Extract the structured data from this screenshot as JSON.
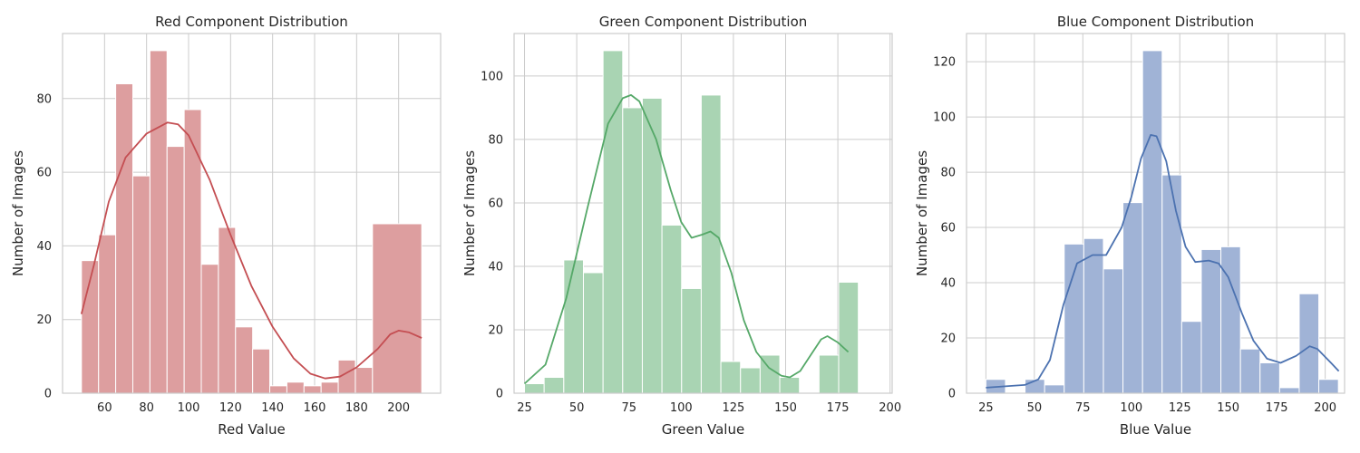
{
  "chart_data": [
    {
      "type": "bar",
      "title": "Red Component Distribution",
      "xlabel": "Red Value",
      "ylabel": "Number of Images",
      "color": "#c44e52",
      "bar_fill": "#dd9e9f",
      "xlim": [
        40,
        220
      ],
      "ylim": [
        0,
        97.65
      ],
      "xticks": [
        60,
        80,
        100,
        120,
        140,
        160,
        180,
        200
      ],
      "yticks": [
        0,
        20,
        40,
        60,
        80
      ],
      "grid": true,
      "bins": [
        {
          "x0": 49.0,
          "x1": 57.15,
          "count": 36
        },
        {
          "x0": 57.15,
          "x1": 65.3,
          "count": 43
        },
        {
          "x0": 65.3,
          "x1": 73.45,
          "count": 84
        },
        {
          "x0": 73.45,
          "x1": 81.6,
          "count": 59
        },
        {
          "x0": 81.6,
          "x1": 89.75,
          "count": 93
        },
        {
          "x0": 89.75,
          "x1": 97.9,
          "count": 67
        },
        {
          "x0": 97.9,
          "x1": 106.05,
          "count": 77
        },
        {
          "x0": 106.05,
          "x1": 114.2,
          "count": 35
        },
        {
          "x0": 114.2,
          "x1": 122.35,
          "count": 45
        },
        {
          "x0": 122.35,
          "x1": 130.5,
          "count": 18
        },
        {
          "x0": 130.5,
          "x1": 138.65,
          "count": 12
        },
        {
          "x0": 138.65,
          "x1": 146.8,
          "count": 2
        },
        {
          "x0": 146.8,
          "x1": 154.95,
          "count": 3
        },
        {
          "x0": 154.95,
          "x1": 163.1,
          "count": 2
        },
        {
          "x0": 163.1,
          "x1": 171.25,
          "count": 3
        },
        {
          "x0": 171.25,
          "x1": 179.4,
          "count": 9
        },
        {
          "x0": 179.4,
          "x1": 187.55,
          "count": 7
        },
        {
          "x0": 187.55,
          "x1": 211.0,
          "count": 46
        }
      ],
      "kde": [
        [
          49,
          21.5
        ],
        [
          55,
          35
        ],
        [
          62,
          52
        ],
        [
          70,
          64
        ],
        [
          80,
          70.5
        ],
        [
          90,
          73.5
        ],
        [
          95,
          73
        ],
        [
          100,
          70
        ],
        [
          110,
          58
        ],
        [
          120,
          43
        ],
        [
          130,
          29
        ],
        [
          140,
          18
        ],
        [
          150,
          9.5
        ],
        [
          158,
          5.3
        ],
        [
          165,
          4.0
        ],
        [
          172,
          4.5
        ],
        [
          180,
          7
        ],
        [
          190,
          12
        ],
        [
          196,
          16
        ],
        [
          200,
          17
        ],
        [
          205,
          16.5
        ],
        [
          211,
          15
        ]
      ]
    },
    {
      "type": "bar",
      "title": "Green Component Distribution",
      "xlabel": "Green Value",
      "ylabel": "Number of Images",
      "color": "#55a868",
      "bar_fill": "#a9d4b3",
      "xlim": [
        20,
        201
      ],
      "ylim": [
        0,
        113.4
      ],
      "xticks": [
        25,
        50,
        75,
        100,
        125,
        150,
        175,
        200
      ],
      "yticks": [
        0,
        20,
        40,
        60,
        80,
        100
      ],
      "grid": true,
      "bins": [
        {
          "x0": 25.0,
          "x1": 34.4,
          "count": 3
        },
        {
          "x0": 34.4,
          "x1": 43.8,
          "count": 5
        },
        {
          "x0": 43.8,
          "x1": 53.2,
          "count": 42
        },
        {
          "x0": 53.2,
          "x1": 62.6,
          "count": 38
        },
        {
          "x0": 62.6,
          "x1": 72.0,
          "count": 108
        },
        {
          "x0": 72.0,
          "x1": 81.4,
          "count": 90
        },
        {
          "x0": 81.4,
          "x1": 90.8,
          "count": 93
        },
        {
          "x0": 90.8,
          "x1": 100.2,
          "count": 53
        },
        {
          "x0": 100.2,
          "x1": 109.6,
          "count": 33
        },
        {
          "x0": 109.6,
          "x1": 119.0,
          "count": 94
        },
        {
          "x0": 119.0,
          "x1": 128.4,
          "count": 10
        },
        {
          "x0": 128.4,
          "x1": 137.8,
          "count": 8
        },
        {
          "x0": 137.8,
          "x1": 147.2,
          "count": 12
        },
        {
          "x0": 147.2,
          "x1": 156.6,
          "count": 5
        },
        {
          "x0": 156.6,
          "x1": 166.0,
          "count": 0
        },
        {
          "x0": 166.0,
          "x1": 175.4,
          "count": 12
        },
        {
          "x0": 175.4,
          "x1": 184.8,
          "count": 35
        }
      ],
      "kde": [
        [
          25,
          3
        ],
        [
          35,
          9
        ],
        [
          45,
          30
        ],
        [
          55,
          58
        ],
        [
          65,
          85
        ],
        [
          72,
          93
        ],
        [
          76,
          94
        ],
        [
          80,
          92
        ],
        [
          88,
          80
        ],
        [
          95,
          64
        ],
        [
          100,
          54
        ],
        [
          105,
          49
        ],
        [
          110,
          50
        ],
        [
          114,
          51
        ],
        [
          118,
          49
        ],
        [
          124,
          38
        ],
        [
          130,
          23
        ],
        [
          136,
          13
        ],
        [
          142,
          8
        ],
        [
          148,
          5.5
        ],
        [
          152,
          5
        ],
        [
          157,
          7
        ],
        [
          162,
          12
        ],
        [
          167,
          17
        ],
        [
          170,
          18
        ],
        [
          175,
          16
        ],
        [
          180,
          13
        ]
      ]
    },
    {
      "type": "bar",
      "title": "Blue Component Distribution",
      "xlabel": "Blue Value",
      "ylabel": "Number of Images",
      "color": "#4c72b0",
      "bar_fill": "#a0b3d6",
      "xlim": [
        15,
        210
      ],
      "ylim": [
        0,
        130.2
      ],
      "xticks": [
        25,
        50,
        75,
        100,
        125,
        150,
        175,
        200
      ],
      "yticks": [
        0,
        20,
        40,
        60,
        80,
        100,
        120
      ],
      "grid": true,
      "bins": [
        {
          "x0": 25.0,
          "x1": 35.1,
          "count": 5
        },
        {
          "x0": 35.1,
          "x1": 45.2,
          "count": 0
        },
        {
          "x0": 45.2,
          "x1": 55.3,
          "count": 5
        },
        {
          "x0": 55.3,
          "x1": 65.4,
          "count": 3
        },
        {
          "x0": 65.4,
          "x1": 75.5,
          "count": 54
        },
        {
          "x0": 75.5,
          "x1": 85.6,
          "count": 56
        },
        {
          "x0": 85.6,
          "x1": 95.7,
          "count": 45
        },
        {
          "x0": 95.7,
          "x1": 105.8,
          "count": 69
        },
        {
          "x0": 105.8,
          "x1": 115.9,
          "count": 124
        },
        {
          "x0": 115.9,
          "x1": 126.0,
          "count": 79
        },
        {
          "x0": 126.0,
          "x1": 136.1,
          "count": 26
        },
        {
          "x0": 136.1,
          "x1": 146.2,
          "count": 52
        },
        {
          "x0": 146.2,
          "x1": 156.3,
          "count": 53
        },
        {
          "x0": 156.3,
          "x1": 166.4,
          "count": 16
        },
        {
          "x0": 166.4,
          "x1": 176.5,
          "count": 11
        },
        {
          "x0": 176.5,
          "x1": 186.6,
          "count": 2
        },
        {
          "x0": 186.6,
          "x1": 196.7,
          "count": 36
        },
        {
          "x0": 196.7,
          "x1": 206.8,
          "count": 5
        }
      ],
      "kde": [
        [
          25,
          2
        ],
        [
          35,
          2.5
        ],
        [
          45,
          3
        ],
        [
          52,
          5
        ],
        [
          58,
          12
        ],
        [
          65,
          32
        ],
        [
          72,
          47
        ],
        [
          80,
          50
        ],
        [
          87,
          50
        ],
        [
          95,
          60
        ],
        [
          100,
          71
        ],
        [
          105,
          85
        ],
        [
          110,
          93.5
        ],
        [
          113,
          93
        ],
        [
          118,
          84
        ],
        [
          123,
          66
        ],
        [
          128,
          53
        ],
        [
          133,
          47.5
        ],
        [
          140,
          48
        ],
        [
          145,
          47
        ],
        [
          150,
          42
        ],
        [
          157,
          29
        ],
        [
          163,
          19
        ],
        [
          170,
          12.5
        ],
        [
          177,
          11
        ],
        [
          185,
          13.5
        ],
        [
          192,
          17
        ],
        [
          196,
          16
        ],
        [
          203,
          11
        ],
        [
          207,
          8
        ]
      ]
    }
  ]
}
